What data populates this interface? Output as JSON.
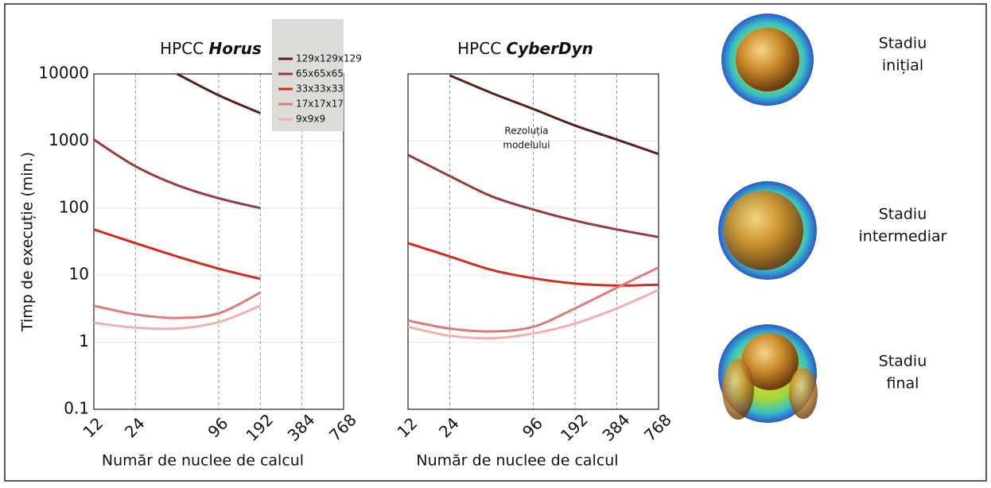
{
  "chart_data": [
    {
      "type": "line",
      "title": "HPCC",
      "title_emphasis": "Horus",
      "xlabel": "Număr de nuclee de calcul",
      "ylabel": "Timp de execuție (min.)",
      "x": [
        12,
        24,
        48,
        96,
        192
      ],
      "xlim": [
        12,
        768
      ],
      "xticks": [
        12,
        24,
        96,
        192,
        384,
        768
      ],
      "xscale": "log",
      "ylim": [
        0.1,
        10000
      ],
      "yticks": [
        0.1,
        1,
        10,
        100,
        1000,
        10000
      ],
      "yscale": "log",
      "grid": true,
      "legend": "upper right",
      "series": [
        {
          "name": "129x129x129",
          "color": "#5a1e1e",
          "values": [
            null,
            null,
            10000,
            4800,
            2600
          ]
        },
        {
          "name": "65x65x65",
          "color": "#9b3a3a",
          "values": [
            1050,
            420,
            220,
            140,
            100
          ]
        },
        {
          "name": "33x33x33",
          "color": "#d42a20",
          "values": [
            48,
            30,
            19,
            12.5,
            8.8
          ]
        },
        {
          "name": "17x17x17",
          "color": "#e07a78",
          "values": [
            3.5,
            2.6,
            2.3,
            2.7,
            5.5
          ]
        },
        {
          "name": "9x9x9",
          "color": "#f0b0b0",
          "values": [
            1.95,
            1.65,
            1.6,
            2.0,
            3.5
          ]
        }
      ]
    },
    {
      "type": "line",
      "title": "HPCC",
      "title_emphasis": "CyberDyn",
      "xlabel": "Număr de nuclee de calcul",
      "annotation": [
        "Rezoluția",
        "modelului"
      ],
      "x": [
        12,
        24,
        48,
        96,
        192,
        384,
        768
      ],
      "xlim": [
        12,
        768
      ],
      "xticks": [
        12,
        24,
        96,
        192,
        384,
        768
      ],
      "xscale": "log",
      "ylim": [
        0.1,
        10000
      ],
      "yscale": "log",
      "grid": true,
      "series": [
        {
          "color": "#5a1e1e",
          "values": [
            null,
            9500,
            5200,
            3000,
            1700,
            1050,
            640
          ]
        },
        {
          "color": "#9b3a3a",
          "values": [
            620,
            300,
            150,
            95,
            65,
            48,
            37
          ]
        },
        {
          "color": "#d42a20",
          "values": [
            30,
            19,
            12,
            9,
            7.5,
            7,
            7.2
          ]
        },
        {
          "color": "#e07a78",
          "values": [
            2.1,
            1.6,
            1.45,
            1.7,
            3.2,
            6.5,
            13
          ]
        },
        {
          "color": "#f0b0b0",
          "values": [
            1.7,
            1.25,
            1.15,
            1.35,
            1.9,
            3.2,
            6
          ]
        }
      ]
    }
  ],
  "stages": [
    [
      "Stadiu",
      "inițial"
    ],
    [
      "Stadiu",
      "intermediar"
    ],
    [
      "Stadiu",
      "final"
    ]
  ]
}
